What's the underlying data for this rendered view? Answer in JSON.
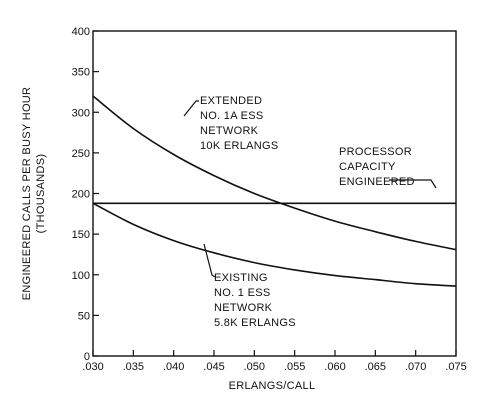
{
  "chart_data": {
    "type": "line",
    "title": "",
    "xlabel": "ERLANGS/CALL",
    "ylabel_lines": [
      "ENGINEERED CALLS PER BUSY HOUR",
      "(THOUSANDS)"
    ],
    "xlim": [
      0.03,
      0.075
    ],
    "ylim": [
      0,
      400
    ],
    "x_ticks": [
      0.03,
      0.035,
      0.04,
      0.045,
      0.05,
      0.055,
      0.06,
      0.065,
      0.07,
      0.075
    ],
    "x_tick_labels": [
      ".030",
      ".035",
      ".040",
      ".045",
      ".050",
      ".055",
      ".060",
      ".065",
      ".070",
      ".075"
    ],
    "y_ticks": [
      0,
      50,
      100,
      150,
      200,
      250,
      300,
      350,
      400
    ],
    "y_tick_labels": [
      "0",
      "50",
      "100",
      "150",
      "200",
      "250",
      "300",
      "350",
      "400"
    ],
    "grid": false,
    "legend": "none",
    "series": [
      {
        "x": [
          0.03,
          0.035,
          0.04,
          0.045,
          0.05,
          0.055,
          0.06,
          0.065,
          0.07,
          0.075
        ],
        "y": [
          320,
          280,
          248,
          222,
          200,
          182,
          166,
          153,
          141,
          131
        ],
        "label_lines": [
          "EXTENDED",
          "NO. 1A ESS",
          "NETWORK",
          "10K ERLANGS"
        ]
      },
      {
        "x": [
          0.03,
          0.035,
          0.04,
          0.045,
          0.05,
          0.055,
          0.06,
          0.065,
          0.07,
          0.075
        ],
        "y": [
          188,
          162,
          142,
          127,
          115,
          106,
          99,
          94,
          89,
          86
        ],
        "label_lines": [
          "EXISTING",
          "NO. 1 ESS",
          "NETWORK",
          "5.8K ERLANGS"
        ]
      },
      {
        "x": [
          0.03,
          0.075
        ],
        "y": [
          188,
          188
        ],
        "label_lines": [
          "PROCESSOR",
          "CAPACITY",
          "ENGINEERED"
        ]
      }
    ]
  }
}
